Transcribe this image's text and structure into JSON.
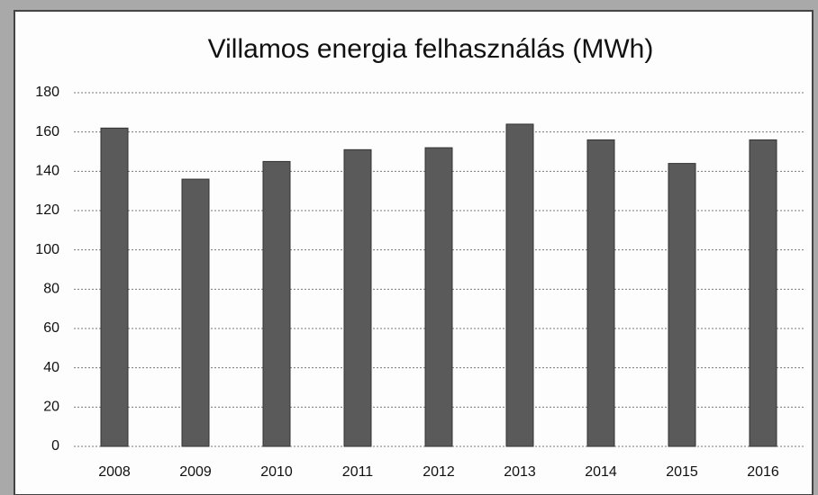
{
  "chart_data": {
    "type": "bar",
    "title": "Villamos energia felhasználás (MWh)",
    "categories": [
      "2008",
      "2009",
      "2010",
      "2011",
      "2012",
      "2013",
      "2014",
      "2015",
      "2016"
    ],
    "values": [
      162,
      136,
      145,
      151,
      152,
      164,
      156,
      144,
      156
    ],
    "color": "#5a5a5a",
    "ylim": [
      0,
      180
    ],
    "yticks": [
      0,
      20,
      40,
      60,
      80,
      100,
      120,
      140,
      160,
      180
    ],
    "grid": true
  }
}
